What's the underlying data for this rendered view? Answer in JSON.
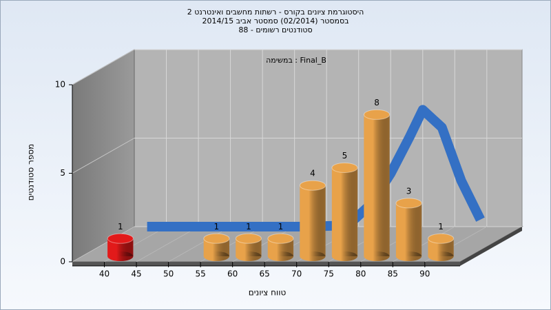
{
  "chart_data": {
    "type": "histogram",
    "title": [
      "היסטוגרמת ציונים בקורס - רשתות מחשבים ואינטרנט 2",
      "בסמסטר (02/2014)  סמסטר אביב 2014/15",
      "סטודנטים רשומים - 88"
    ],
    "annotation": "במשימה : Final_B",
    "ylabel": "מספר סטודנטים",
    "xlabel": "טווח ציונים",
    "bins": [
      40,
      45,
      50,
      55,
      60,
      65,
      70,
      75,
      80,
      85,
      90,
      95
    ],
    "counts": [
      1,
      null,
      null,
      1,
      1,
      1,
      4,
      5,
      8,
      3,
      1
    ],
    "colors": [
      "#e21a1a",
      "#e8a24a",
      "#e8a24a",
      "#e8a24a",
      "#e8a24a",
      "#e8a24a",
      "#e8a24a",
      "#e8a24a",
      "#e8a24a",
      "#e8a24a",
      "#e8a24a"
    ],
    "curve": {
      "color": "#3470c4",
      "x": [
        37,
        45,
        52,
        57,
        62,
        66,
        69,
        72,
        75,
        78,
        80,
        83,
        86,
        89
      ],
      "y": [
        0,
        0,
        0,
        0,
        0,
        0.05,
        0.3,
        1.3,
        3.0,
        5.1,
        6.6,
        5.6,
        2.6,
        0.4
      ]
    },
    "xlim": [
      35,
      95.5
    ],
    "xticks": [
      40,
      45,
      50,
      55,
      60,
      65,
      70,
      75,
      80,
      85,
      90
    ],
    "ylim": [
      0,
      10
    ],
    "yticks": [
      0,
      5,
      10
    ],
    "grid": true
  }
}
